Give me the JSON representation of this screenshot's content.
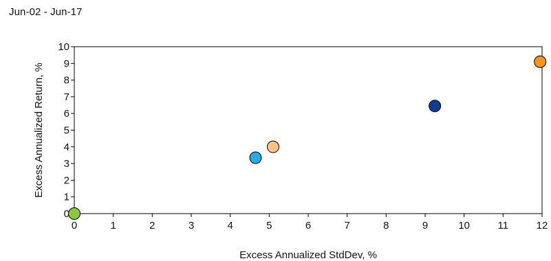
{
  "header": {
    "date_range": "Jun-02 - Jun-17"
  },
  "chart_data": {
    "type": "scatter",
    "title": "",
    "xlabel": "Excess Annualized StdDev, %",
    "ylabel": "Excess Annualized Return, %",
    "xlim": [
      0,
      12
    ],
    "ylim": [
      0,
      10
    ],
    "xticks": [
      "0",
      "1",
      "2",
      "3",
      "4",
      "5",
      "6",
      "7",
      "8",
      "9",
      "10",
      "11",
      "12"
    ],
    "yticks": [
      "0",
      "1",
      "2",
      "3",
      "4",
      "5",
      "6",
      "7",
      "8",
      "9",
      "10"
    ],
    "grid": false,
    "legend": "none",
    "points": [
      {
        "x": 0.0,
        "y": 0.0,
        "color": "#8dc63f"
      },
      {
        "x": 4.65,
        "y": 3.35,
        "color": "#29abe2"
      },
      {
        "x": 5.1,
        "y": 4.0,
        "color": "#f9c387"
      },
      {
        "x": 9.25,
        "y": 6.45,
        "color": "#0b3c96"
      },
      {
        "x": 11.95,
        "y": 9.1,
        "color": "#f7941d"
      }
    ]
  }
}
